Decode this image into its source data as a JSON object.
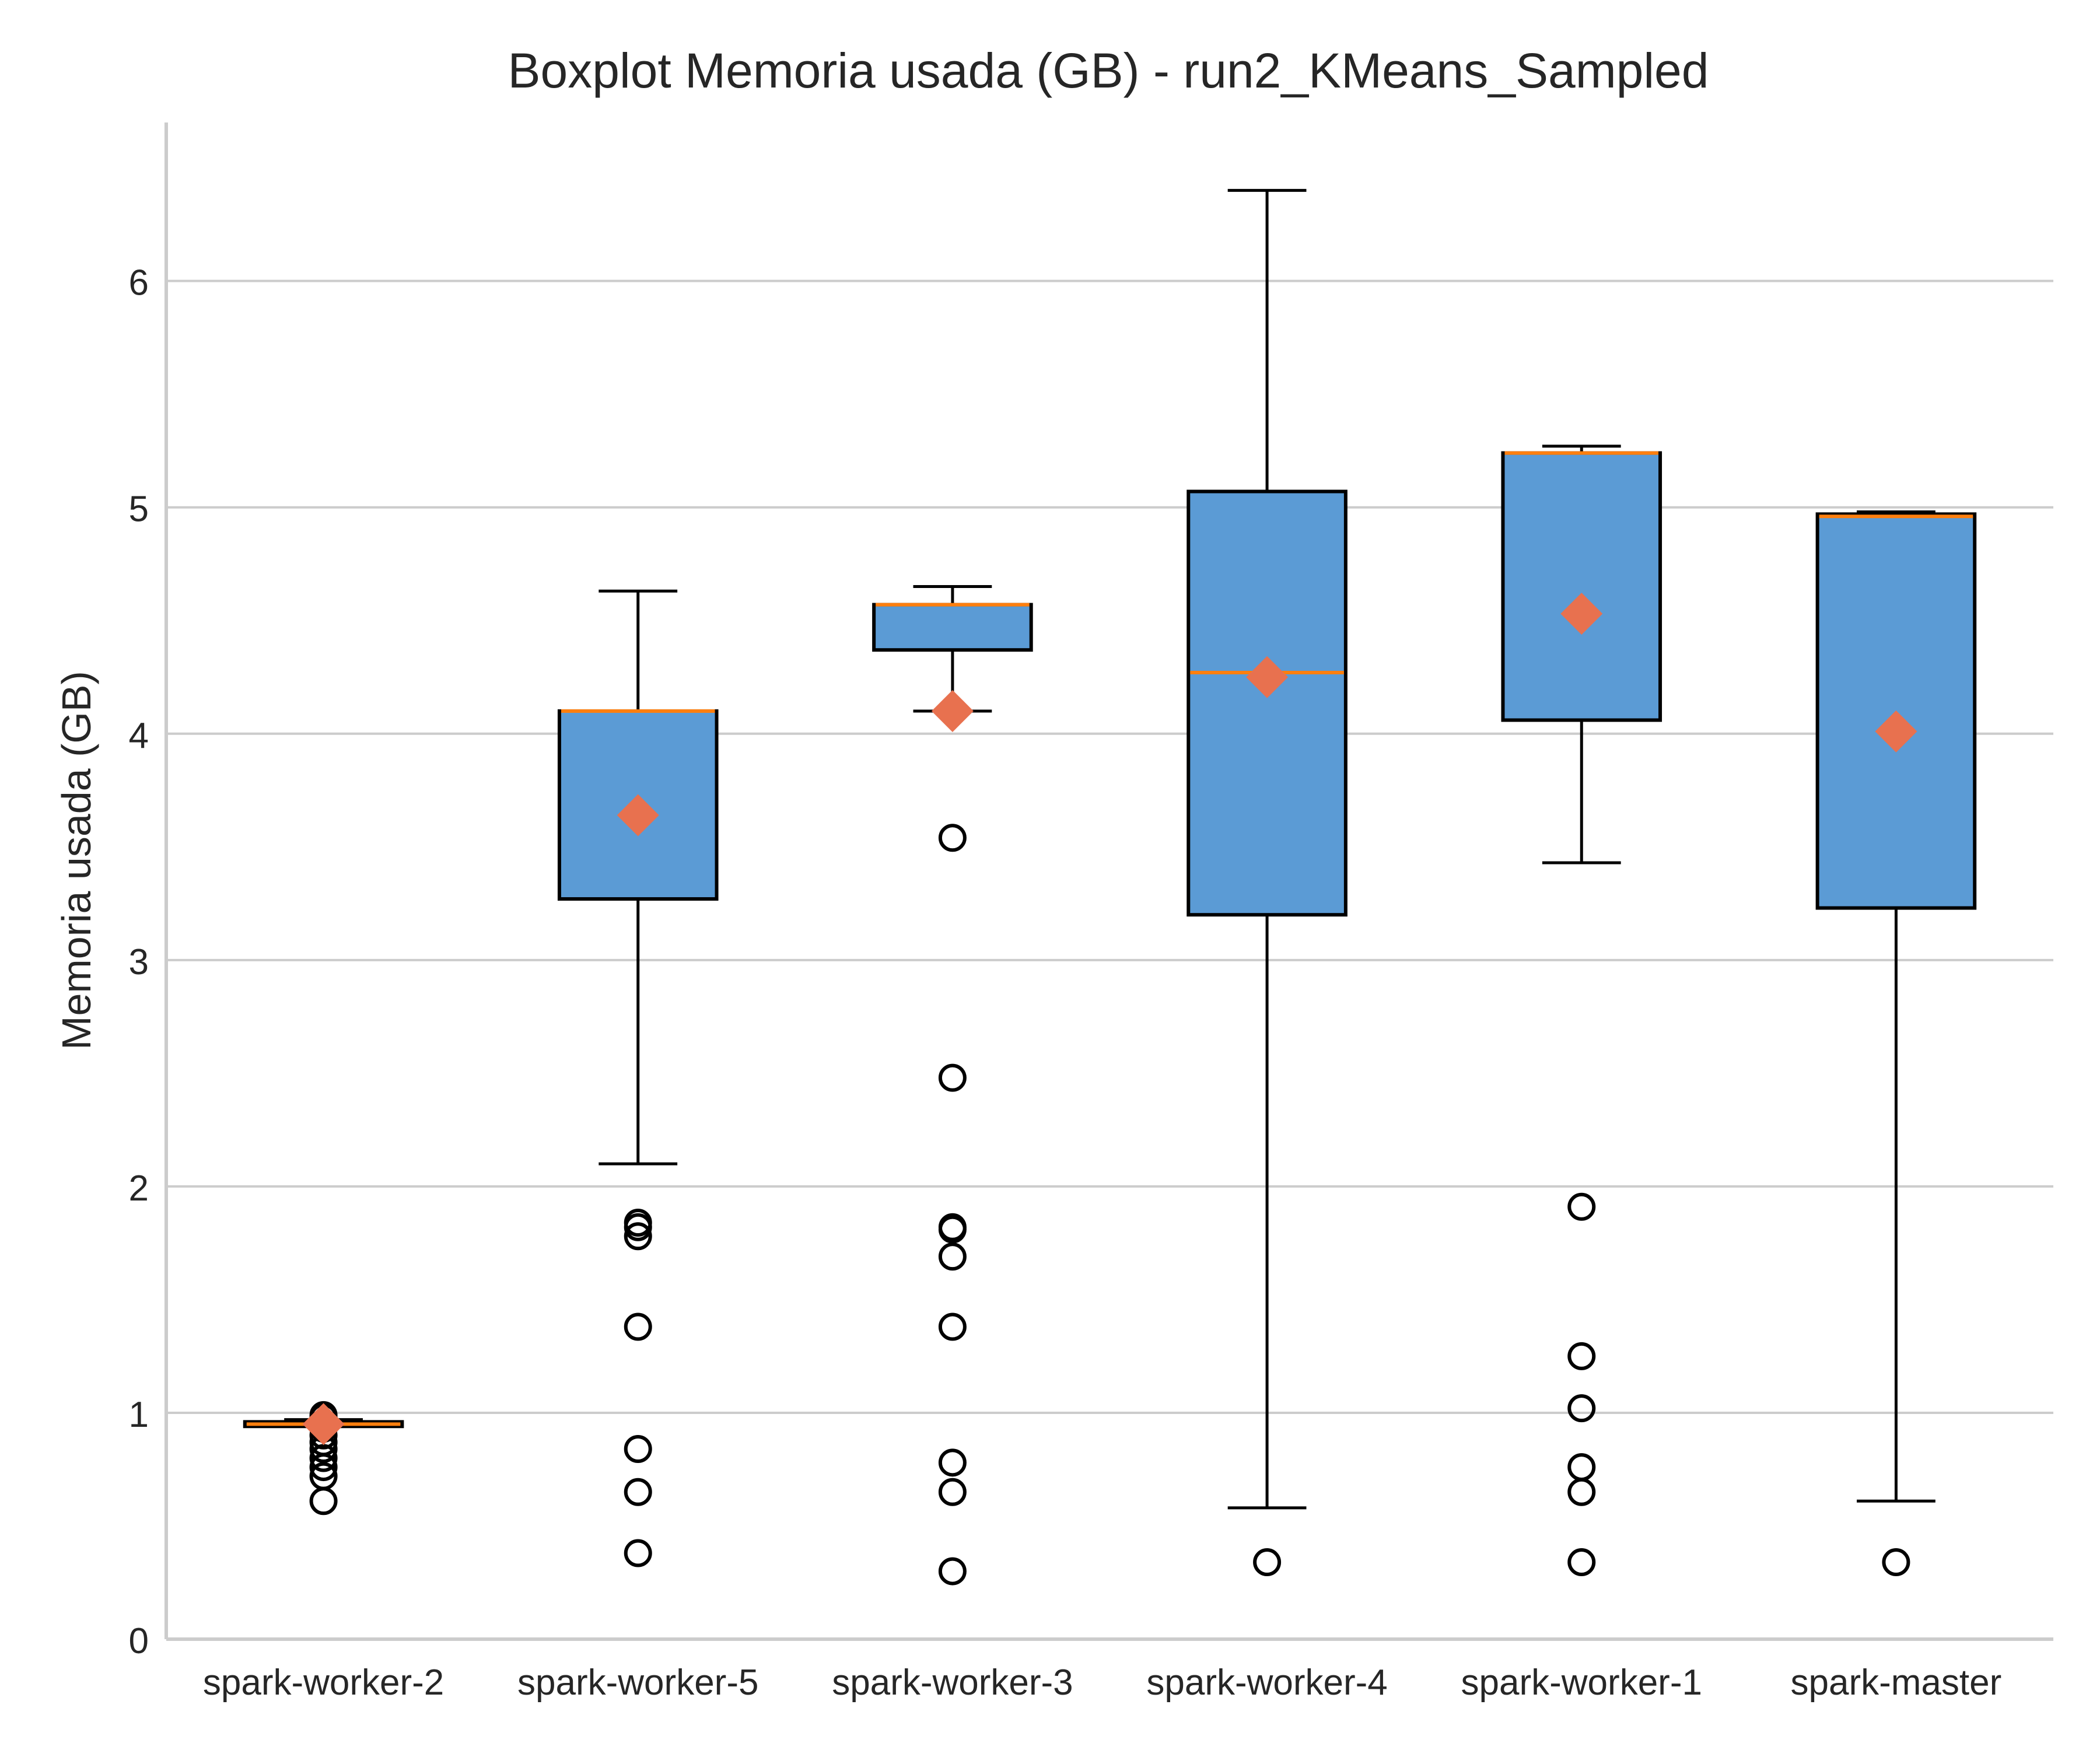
{
  "chart_data": {
    "type": "boxplot",
    "title": "Boxplot Memoria usada (GB) - run2_KMeans_Sampled",
    "xlabel": "",
    "ylabel": "Memoria usada (GB)",
    "ylim": [
      0,
      6.7
    ],
    "yticks": [
      0,
      1,
      2,
      3,
      4,
      5,
      6
    ],
    "grid": "y",
    "categories": [
      "spark-worker-2",
      "spark-worker-5",
      "spark-worker-3",
      "spark-worker-4",
      "spark-worker-1",
      "spark-master"
    ],
    "boxes": [
      {
        "whislo": 0.94,
        "q1": 0.94,
        "med": 0.95,
        "q3": 0.96,
        "whishi": 0.97,
        "mean": 0.95,
        "fliers": [
          0.61,
          0.72,
          0.76,
          0.8,
          0.84,
          0.87,
          0.9,
          0.93,
          0.98,
          0.99
        ]
      },
      {
        "whislo": 2.1,
        "q1": 3.27,
        "med": 4.1,
        "q3": 4.1,
        "whishi": 4.63,
        "mean": 3.64,
        "fliers": [
          0.38,
          0.65,
          0.84,
          1.38,
          1.78,
          1.82,
          1.84
        ]
      },
      {
        "whislo": 4.1,
        "q1": 4.37,
        "med": 4.57,
        "q3": 4.57,
        "whishi": 4.65,
        "mean": 4.1,
        "fliers": [
          0.3,
          0.65,
          0.78,
          1.38,
          1.69,
          1.81,
          1.82,
          2.48,
          3.54
        ]
      },
      {
        "whislo": 0.58,
        "q1": 3.2,
        "med": 4.27,
        "q3": 5.07,
        "whishi": 6.4,
        "mean": 4.25,
        "fliers": [
          0.34
        ]
      },
      {
        "whislo": 3.43,
        "q1": 4.06,
        "med": 5.24,
        "q3": 5.24,
        "whishi": 5.27,
        "mean": 4.53,
        "fliers": [
          0.34,
          0.65,
          0.76,
          1.02,
          1.25,
          1.91
        ]
      },
      {
        "whislo": 0.61,
        "q1": 3.23,
        "med": 4.96,
        "q3": 4.97,
        "whishi": 4.98,
        "mean": 4.01,
        "fliers": [
          0.34
        ]
      }
    ],
    "colors": {
      "box_fill": "#5b9bd5",
      "box_edge": "#000000",
      "median": "#ff7f0e",
      "mean_marker": "#e8714f",
      "grid": "#cccccc",
      "axis": "#cccccc"
    }
  }
}
